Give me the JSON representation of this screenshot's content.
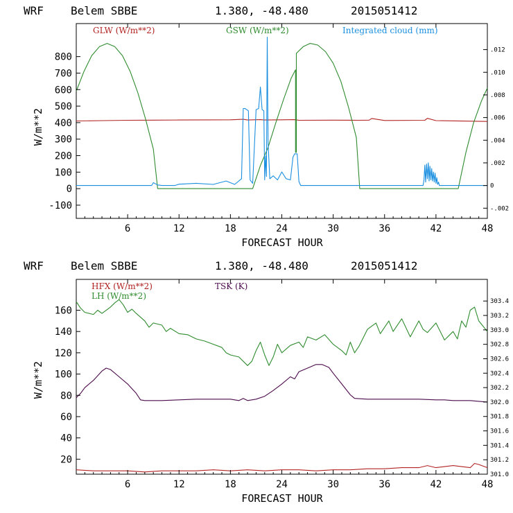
{
  "header": {
    "model": "WRF",
    "station": "Belem SBBE",
    "coords": "1.380, -48.480",
    "run": "2015051412"
  },
  "colors": {
    "red": "#b22222",
    "green": "#2e8b2e",
    "blue": "#1a8fe0",
    "purple": "#4b0a4b",
    "axis": "#000000"
  },
  "chart_data": [
    {
      "type": "line",
      "title": "",
      "xlabel": "FORECAST HOUR",
      "ylabel": "W/m**2",
      "xlim": [
        0,
        48
      ],
      "ylim": [
        -180,
        1000
      ],
      "y2lim": [
        -0.0029,
        0.0143
      ],
      "xticks": [
        "6",
        "12",
        "18",
        "24",
        "30",
        "36",
        "42",
        "48"
      ],
      "yticks": [
        "-100",
        "0",
        "100",
        "200",
        "300",
        "400",
        "500",
        "600",
        "700",
        "800"
      ],
      "y2ticks": [
        "-.002",
        "0",
        ".002",
        ".004",
        ".006",
        ".008",
        ".010",
        ".012"
      ],
      "legend": [
        "GLW (W/m**2)",
        "GSW (W/m**2)",
        "Integrated cloud (mm)"
      ],
      "series": [
        {
          "name": "GLW (W/m**2)",
          "axis": "left",
          "x": [
            0,
            3,
            6,
            9,
            12,
            18,
            19.5,
            20,
            21.5,
            22,
            24,
            25.5,
            26,
            30,
            33,
            34.2,
            34.5,
            36,
            40.7,
            41,
            42,
            48
          ],
          "values": [
            410,
            412,
            414,
            415,
            416,
            417,
            420,
            416,
            418,
            416,
            417,
            418,
            414,
            415,
            414,
            415,
            425,
            413,
            414,
            426,
            412,
            407
          ]
        },
        {
          "name": "GSW (W/m**2)",
          "axis": "left",
          "x": [
            0,
            0.9,
            1.8,
            2.7,
            3.6,
            4.5,
            5.4,
            6.3,
            7.2,
            8.1,
            9,
            9.5,
            20.6,
            21.5,
            22.4,
            23.3,
            24.2,
            25.1,
            25.6,
            25.6,
            25.7,
            25.7,
            26.5,
            27.3,
            28.2,
            29.1,
            30,
            30.9,
            31.8,
            32.7,
            33.1,
            44.6,
            45.5,
            46.4,
            47.3,
            48
          ],
          "values": [
            590,
            710,
            805,
            860,
            880,
            860,
            805,
            710,
            580,
            420,
            240,
            0,
            0,
            140,
            250,
            400,
            540,
            670,
            720,
            220,
            220,
            820,
            860,
            880,
            870,
            830,
            760,
            650,
            490,
            310,
            0,
            0,
            220,
            400,
            530,
            610
          ]
        },
        {
          "name": "Integrated cloud (mm)",
          "axis": "right",
          "x": [
            0,
            8.8,
            9,
            9.5,
            10,
            11.5,
            12,
            14,
            16,
            17.5,
            18.5,
            19.3,
            19.5,
            19.7,
            20.1,
            20.3,
            20.6,
            21,
            21.3,
            21.5,
            21.7,
            21.9,
            22,
            22.1,
            22.2,
            22.3,
            22.4,
            22.6,
            23,
            23.5,
            24,
            24.5,
            25,
            25.3,
            25.5,
            25.8,
            26,
            26.2,
            40.5,
            40.6,
            40.7,
            40.8,
            40.9,
            41,
            41.1,
            41.2,
            41.3,
            41.4,
            41.5,
            41.6,
            41.7,
            41.8,
            41.9,
            42,
            42.1,
            42.2,
            42.3,
            42.4,
            42.6,
            48
          ],
          "values": [
            0,
            0,
            0.00025,
            5e-05,
            0,
            0,
            0.00012,
            0.0002,
            0.0001,
            0.0004,
            0.0001,
            0.0006,
            0.0068,
            0.0068,
            0.0066,
            0.0005,
            0.0002,
            0.0067,
            0.0068,
            0.0087,
            0.0067,
            0.0066,
            0.0005,
            0.0026,
            0.0008,
            0.0131,
            0.0038,
            0.0006,
            0.00085,
            0.0005,
            0.0012,
            0.0006,
            0.0005,
            0.0025,
            0.0028,
            0.0028,
            0.00035,
            0,
            0,
            0.0005,
            0.0018,
            0.0003,
            0.0019,
            0.0006,
            0.002,
            0.0004,
            0.0017,
            0.0005,
            0.0015,
            0.0004,
            0.0012,
            0.0003,
            0.0011,
            0.0002,
            0.0007,
            0.0001,
            0.0003,
            0,
            0,
            0
          ]
        }
      ]
    },
    {
      "type": "line",
      "title": "",
      "xlabel": "FORECAST HOUR",
      "ylabel": "W/m**2",
      "xlim": [
        0,
        48
      ],
      "ylim": [
        5.9,
        189
      ],
      "y2lim": [
        301.0,
        303.7
      ],
      "xticks": [
        "6",
        "12",
        "18",
        "24",
        "30",
        "36",
        "42",
        "48"
      ],
      "yticks": [
        "20",
        "40",
        "60",
        "80",
        "100",
        "120",
        "140",
        "160"
      ],
      "y2ticks": [
        "301.0",
        "301.2",
        "301.4",
        "301.6",
        "301.8",
        "302.0",
        "302.2",
        "302.4",
        "302.6",
        "302.8",
        "303.0",
        "303.2",
        "303.4"
      ],
      "legend": [
        "HFX (W/m**2)",
        "LH (W/m**2)",
        "TSK (K)"
      ],
      "series": [
        {
          "name": "HFX (W/m**2)",
          "axis": "left",
          "x": [
            0,
            2,
            4,
            6,
            8,
            10,
            12,
            14,
            16,
            18,
            20,
            22,
            24,
            26,
            28,
            30,
            32,
            34,
            36,
            38,
            40,
            41,
            42,
            43,
            44,
            45,
            46,
            46.5,
            47,
            48
          ],
          "values": [
            10,
            9,
            9,
            9,
            8,
            9,
            9,
            9,
            10,
            9,
            10,
            9,
            10,
            10,
            9,
            10,
            10,
            11,
            11,
            12,
            12,
            14,
            12,
            13,
            14,
            13,
            12,
            16,
            15,
            12
          ]
        },
        {
          "name": "LH (W/m**2)",
          "axis": "left",
          "x": [
            0,
            0.5,
            1,
            2,
            2.5,
            3,
            4,
            4.5,
            5,
            5.5,
            6,
            6.5,
            7,
            8,
            8.5,
            9,
            10,
            10.5,
            11,
            12,
            13,
            14,
            15,
            16,
            17,
            17.5,
            18,
            19,
            20,
            20.5,
            21,
            21.5,
            22,
            22.5,
            23,
            23.5,
            24,
            25,
            26,
            26.5,
            27,
            28,
            29,
            30,
            31,
            31.5,
            32,
            32.5,
            33,
            33.5,
            34,
            35,
            35.5,
            36,
            36.5,
            37,
            38,
            39,
            40,
            40.5,
            41,
            42,
            42.5,
            43,
            44,
            44.5,
            45,
            45.5,
            46,
            46.5,
            47,
            47.5,
            48
          ],
          "values": [
            168,
            162,
            158,
            156,
            160,
            157,
            163,
            167,
            170,
            165,
            158,
            161,
            157,
            150,
            144,
            148,
            146,
            140,
            143,
            138,
            137,
            133,
            131,
            128,
            125,
            120,
            118,
            116,
            108,
            112,
            122,
            130,
            118,
            108,
            116,
            128,
            120,
            127,
            130,
            125,
            135,
            132,
            137,
            128,
            122,
            118,
            130,
            120,
            126,
            134,
            142,
            148,
            138,
            144,
            150,
            140,
            152,
            135,
            150,
            142,
            139,
            148,
            140,
            132,
            140,
            133,
            150,
            144,
            160,
            163,
            150,
            145,
            140
          ]
        },
        {
          "name": "TSK (K)",
          "axis": "right",
          "x": [
            0,
            0.5,
            1,
            2,
            3,
            3.5,
            4,
            5,
            6,
            7,
            7.5,
            8,
            10,
            12,
            14,
            16,
            18,
            19,
            19.5,
            20,
            21,
            22,
            23,
            24,
            25,
            25.5,
            26,
            27,
            28,
            28.7,
            29.5,
            30,
            31,
            32,
            32.5,
            34,
            36,
            38,
            40,
            42,
            43,
            44,
            46,
            47,
            48
          ],
          "values": [
            302.06,
            302.12,
            302.2,
            302.3,
            302.43,
            302.47,
            302.45,
            302.35,
            302.25,
            302.12,
            302.03,
            302.02,
            302.02,
            302.03,
            302.04,
            302.04,
            302.04,
            302.02,
            302.05,
            302.02,
            302.04,
            302.08,
            302.16,
            302.25,
            302.35,
            302.32,
            302.42,
            302.47,
            302.52,
            302.52,
            302.48,
            302.4,
            302.25,
            302.1,
            302.05,
            302.04,
            302.04,
            302.04,
            302.04,
            302.03,
            302.03,
            302.02,
            302.02,
            302.01,
            302.0
          ]
        }
      ]
    }
  ]
}
